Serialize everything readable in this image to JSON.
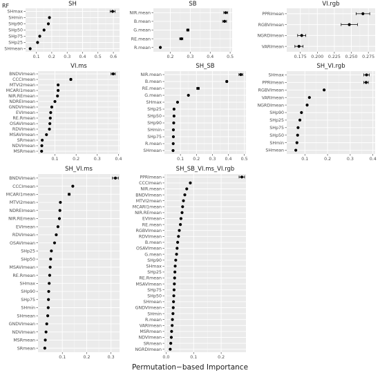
{
  "figure": {
    "label": "RF",
    "xlabel": "Permutation−based Importance"
  },
  "style": {
    "panel_bg": "#ebebeb",
    "grid_major": "#ffffff",
    "point": "#000000"
  },
  "chart_data": [
    {
      "type": "scatter",
      "title": "SH",
      "categories": [
        "SHmax",
        "SHmin",
        "SHp90",
        "SHp50",
        "SHp75",
        "SHp25",
        "SHmean"
      ],
      "values": [
        0.595,
        0.185,
        0.178,
        0.15,
        0.122,
        0.108,
        0.06
      ],
      "errors": [
        0.016,
        0.003,
        0.003,
        0.003,
        0.003,
        0.003,
        0.003
      ],
      "xlim": [
        0.03,
        0.64
      ],
      "xticks": [
        0.1,
        0.2,
        0.3,
        0.4,
        0.5,
        0.6
      ],
      "xticklabels": [
        "0.1",
        "0.2",
        "0.3",
        "0.4",
        "0.5",
        "0.6"
      ]
    },
    {
      "type": "scatter",
      "title": "SB",
      "categories": [
        "NIR.mean",
        "B.mean",
        "G.mean",
        "RE.mean",
        "R.mean"
      ],
      "values": [
        0.478,
        0.472,
        0.288,
        0.255,
        0.15
      ],
      "errors": [
        0.01,
        0.01,
        0.006,
        0.008,
        0.002
      ],
      "xlim": [
        0.115,
        0.51
      ],
      "xticks": [
        0.2,
        0.3,
        0.4,
        0.5
      ],
      "xticklabels": [
        "0.2",
        "0.3",
        "0.4",
        "0.5"
      ]
    },
    {
      "type": "scatter",
      "title": "VI.rgb",
      "categories": [
        "PPRImean",
        "RGBVImean",
        "NGRDImean",
        "VARImean"
      ],
      "values": [
        0.267,
        0.247,
        0.177,
        0.173
      ],
      "errors": [
        0.01,
        0.012,
        0.006,
        0.006
      ],
      "xlim": [
        0.155,
        0.285
      ],
      "xticks": [
        0.175,
        0.2,
        0.225,
        0.25,
        0.275
      ],
      "xticklabels": [
        "0.175",
        "0.200",
        "0.225",
        "0.250",
        "0.275"
      ]
    },
    {
      "type": "scatter",
      "title": "VI.ms",
      "categories": [
        "BNDVImean",
        "CCCImean",
        "MTVI2mean",
        "MCARI1mean",
        "NIR.REmean",
        "NDREImean",
        "GNDVImean",
        "EVImean",
        "RE.Rmean",
        "OSAVImean",
        "RDVImean",
        "MSAVImean",
        "SRmean",
        "NDVImean",
        "MSRmean"
      ],
      "values": [
        0.375,
        0.175,
        0.115,
        0.115,
        0.112,
        0.1,
        0.085,
        0.08,
        0.078,
        0.076,
        0.074,
        0.06,
        0.04,
        0.038,
        0.037
      ],
      "errors": [
        0.01,
        0.004,
        0,
        0,
        0,
        0,
        0,
        0,
        0,
        0,
        0,
        0,
        0,
        0,
        0
      ],
      "xlim": [
        0.02,
        0.405
      ],
      "xticks": [
        0.1,
        0.2,
        0.3,
        0.4
      ],
      "xticklabels": [
        "0.1",
        "0.2",
        "0.3",
        "0.4"
      ]
    },
    {
      "type": "scatter",
      "title": "SH_SB",
      "categories": [
        "NIR.mean",
        "B.mean",
        "RE.mean",
        "G.mean",
        "SHmax",
        "SHp25",
        "SHp50",
        "SHp90",
        "SHmin",
        "SHp75",
        "R.mean",
        "SHmean"
      ],
      "values": [
        0.478,
        0.39,
        0.21,
        0.15,
        0.082,
        0.06,
        0.06,
        0.058,
        0.056,
        0.056,
        0.055,
        0.054
      ],
      "errors": [
        0.012,
        0.005,
        0.008,
        0,
        0,
        0,
        0,
        0,
        0,
        0,
        0,
        0
      ],
      "xlim": [
        0.0,
        0.51
      ],
      "xticks": [
        0.1,
        0.2,
        0.3,
        0.4,
        0.5
      ],
      "xticklabels": [
        "0.1",
        "0.2",
        "0.3",
        "0.4",
        "0.5"
      ]
    },
    {
      "type": "scatter",
      "title": "SH_VI.rgb",
      "categories": [
        "SHmax",
        "PPRImean",
        "RGBVImean",
        "VARImean",
        "NGRDImean",
        "SHp90",
        "SHp25",
        "SHp75",
        "SHp50",
        "SHmin",
        "SHmean"
      ],
      "values": [
        0.372,
        0.37,
        0.185,
        0.12,
        0.11,
        0.085,
        0.078,
        0.07,
        0.068,
        0.065,
        0.06
      ],
      "errors": [
        0.012,
        0.01,
        0,
        0,
        0,
        0,
        0,
        0,
        0,
        0,
        0
      ],
      "xlim": [
        0.02,
        0.41
      ],
      "xticks": [
        0.1,
        0.2,
        0.3,
        0.4
      ],
      "xticklabels": [
        "0.1",
        "0.2",
        "0.3",
        "0.4"
      ]
    },
    {
      "type": "scatter",
      "title": "SH_VI.ms",
      "categories": [
        "BNDVImean",
        "CCCImean",
        "MCARI1mean",
        "MTVI2mean",
        "NDREImean",
        "NIR.REmean",
        "EVImean",
        "RDVImean",
        "OSAVImean",
        "SHp25",
        "SHp50",
        "MSAVImean",
        "RE.Rmean",
        "SHmax",
        "SHp90",
        "SHp75",
        "SHmin",
        "SHmean",
        "GNDVImean",
        "NDVImean",
        "MSRmean",
        "SRmean"
      ],
      "values": [
        0.318,
        0.143,
        0.128,
        0.092,
        0.09,
        0.088,
        0.082,
        0.075,
        0.068,
        0.055,
        0.052,
        0.05,
        0.048,
        0.046,
        0.044,
        0.043,
        0.042,
        0.04,
        0.036,
        0.033,
        0.03,
        0.028
      ],
      "errors": [
        0.012,
        0,
        0.004,
        0,
        0,
        0,
        0,
        0,
        0,
        0,
        0,
        0,
        0,
        0,
        0,
        0,
        0,
        0,
        0,
        0,
        0,
        0
      ],
      "xlim": [
        0.0,
        0.335
      ],
      "xticks": [
        0.1,
        0.2,
        0.3
      ],
      "xticklabels": [
        "0.1",
        "0.2",
        "0.3"
      ]
    },
    {
      "type": "scatter",
      "title": "SH_SB_VI.ms_VI.rgb",
      "categories": [
        "PPRImean",
        "CCCImean",
        "NIR.mean",
        "BNDVImean",
        "MTVI2mean",
        "MCARI1mean",
        "NIR.REmean",
        "EVImean",
        "RE.mean",
        "RGBVImean",
        "RDVImean",
        "B.mean",
        "OSAVImean",
        "G.mean",
        "SHp90",
        "SHmax",
        "SHp25",
        "RE.Rmean",
        "MSAVImean",
        "SHp75",
        "SHp50",
        "SHmean",
        "GNDVImean",
        "SHmin",
        "R.mean",
        "VARImean",
        "MSRmean",
        "NDVImean",
        "SRmean",
        "NGRDImean"
      ],
      "values": [
        0.275,
        0.088,
        0.075,
        0.068,
        0.063,
        0.06,
        0.058,
        0.054,
        0.052,
        0.048,
        0.045,
        0.042,
        0.04,
        0.038,
        0.035,
        0.033,
        0.032,
        0.031,
        0.03,
        0.029,
        0.028,
        0.027,
        0.026,
        0.025,
        0.023,
        0.022,
        0.02,
        0.019,
        0.017,
        0.015
      ],
      "errors": [
        0.01,
        0,
        0,
        0,
        0,
        0,
        0,
        0,
        0,
        0,
        0,
        0,
        0,
        0,
        0,
        0,
        0,
        0,
        0,
        0,
        0,
        0,
        0,
        0,
        0,
        0,
        0,
        0,
        0,
        0
      ],
      "xlim": [
        -0.006,
        0.29
      ],
      "xticks": [
        0.0,
        0.1,
        0.2
      ],
      "xticklabels": [
        "0.0",
        "0.1",
        "0.2"
      ]
    }
  ]
}
